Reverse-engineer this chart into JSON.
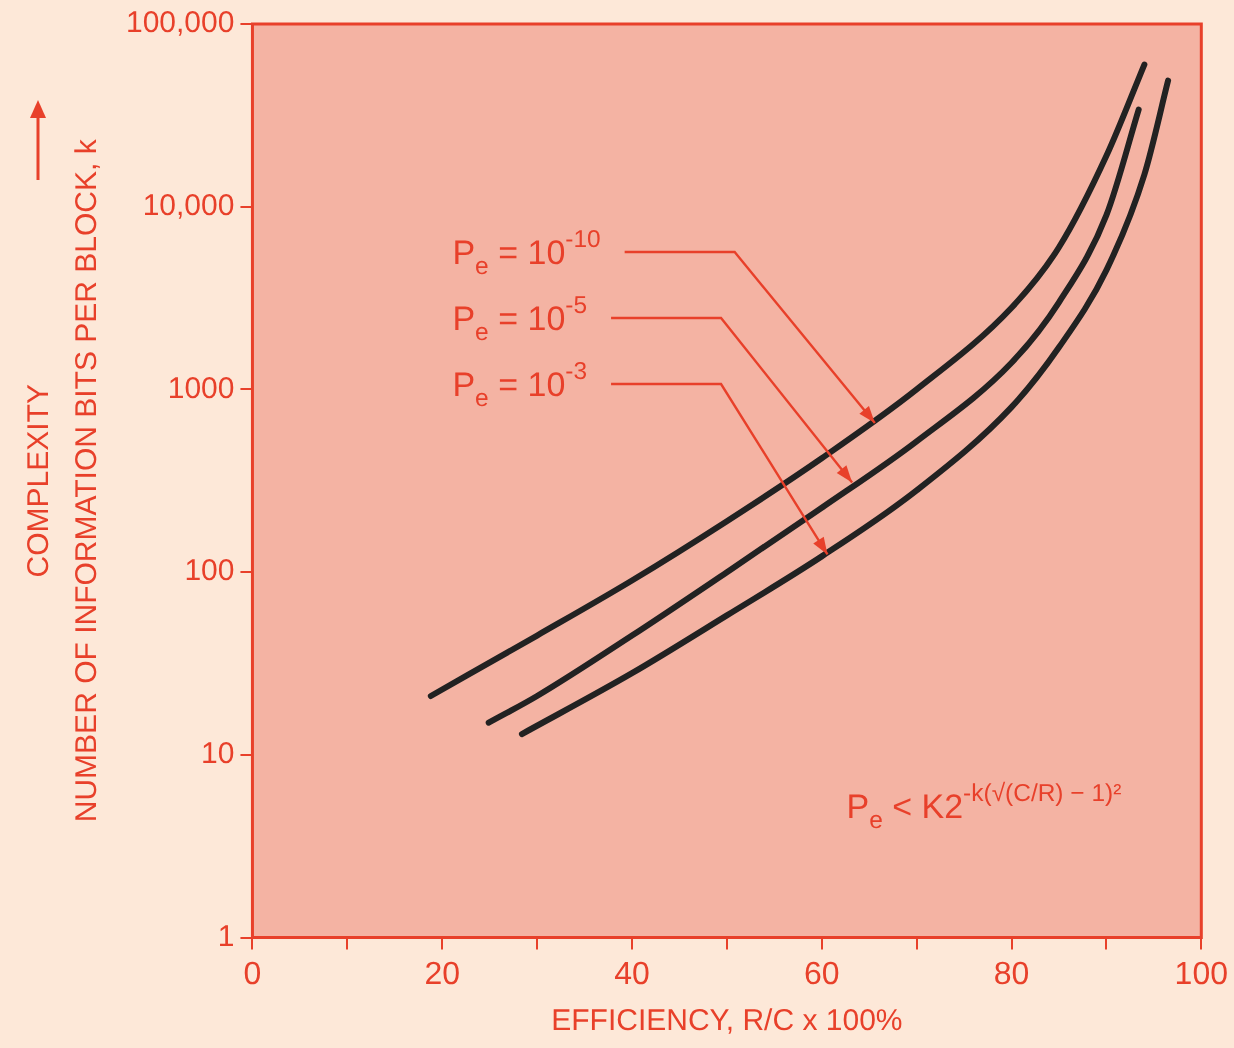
{
  "chart_data": {
    "type": "line",
    "xlabel": "EFFICIENCY, R/C x 100%",
    "ylabel": "COMPLEXITY\nNUMBER OF INFORMATION BITS PER BLOCK, k",
    "log": "y",
    "xlim": [
      0,
      100
    ],
    "xticks": [
      0,
      {
        "value": 10,
        "label": null
      },
      20,
      {
        "value": 30,
        "label": null
      },
      40,
      {
        "value": 50,
        "label": null
      },
      60,
      {
        "value": 70,
        "label": null
      },
      80,
      {
        "value": 90,
        "label": null
      },
      100
    ],
    "ylim": [
      1,
      100000
    ],
    "yticks": [
      1,
      10,
      100,
      1000,
      {
        "value": 10000,
        "label": "10,000"
      },
      {
        "value": 100000,
        "label": "100,000"
      }
    ],
    "grid": false,
    "legend": false,
    "marker": "none",
    "series": [
      {
        "color": "#222222",
        "x": [
          18.8,
          30,
          40,
          50,
          60,
          70,
          80,
          85,
          90,
          94
        ],
        "values": [
          21,
          45,
          90,
          190,
          420,
          1000,
          2800,
          6000,
          19000,
          60000
        ]
      },
      {
        "color": "#222222",
        "x": [
          24.9,
          30,
          40,
          50,
          60,
          70,
          80,
          85,
          90,
          93.4
        ],
        "values": [
          15,
          21,
          45,
          100,
          225,
          520,
          1400,
          3000,
          9000,
          34000
        ]
      },
      {
        "color": "#222222",
        "x": [
          28.4,
          40,
          50,
          60,
          70,
          80,
          85,
          90,
          94,
          96.5
        ],
        "values": [
          13,
          28,
          58,
          122,
          280,
          800,
          1700,
          4500,
          15000,
          49000
        ]
      }
    ],
    "annotations": [
      {
        "text": "P$_{e}$ = 10$^{-10}$",
        "x": 65.6,
        "y": 655
      },
      {
        "text": "P$_{e}$ = 10$^{-5}$",
        "x": 63.2,
        "y": 310
      },
      {
        "text": "P$_{e}$ = 10$^{-3}$",
        "x": 60.6,
        "y": 125
      },
      "P$_{e}$ < K2$^{-k(√(C/R) − 1)²}$"
    ]
  }
}
